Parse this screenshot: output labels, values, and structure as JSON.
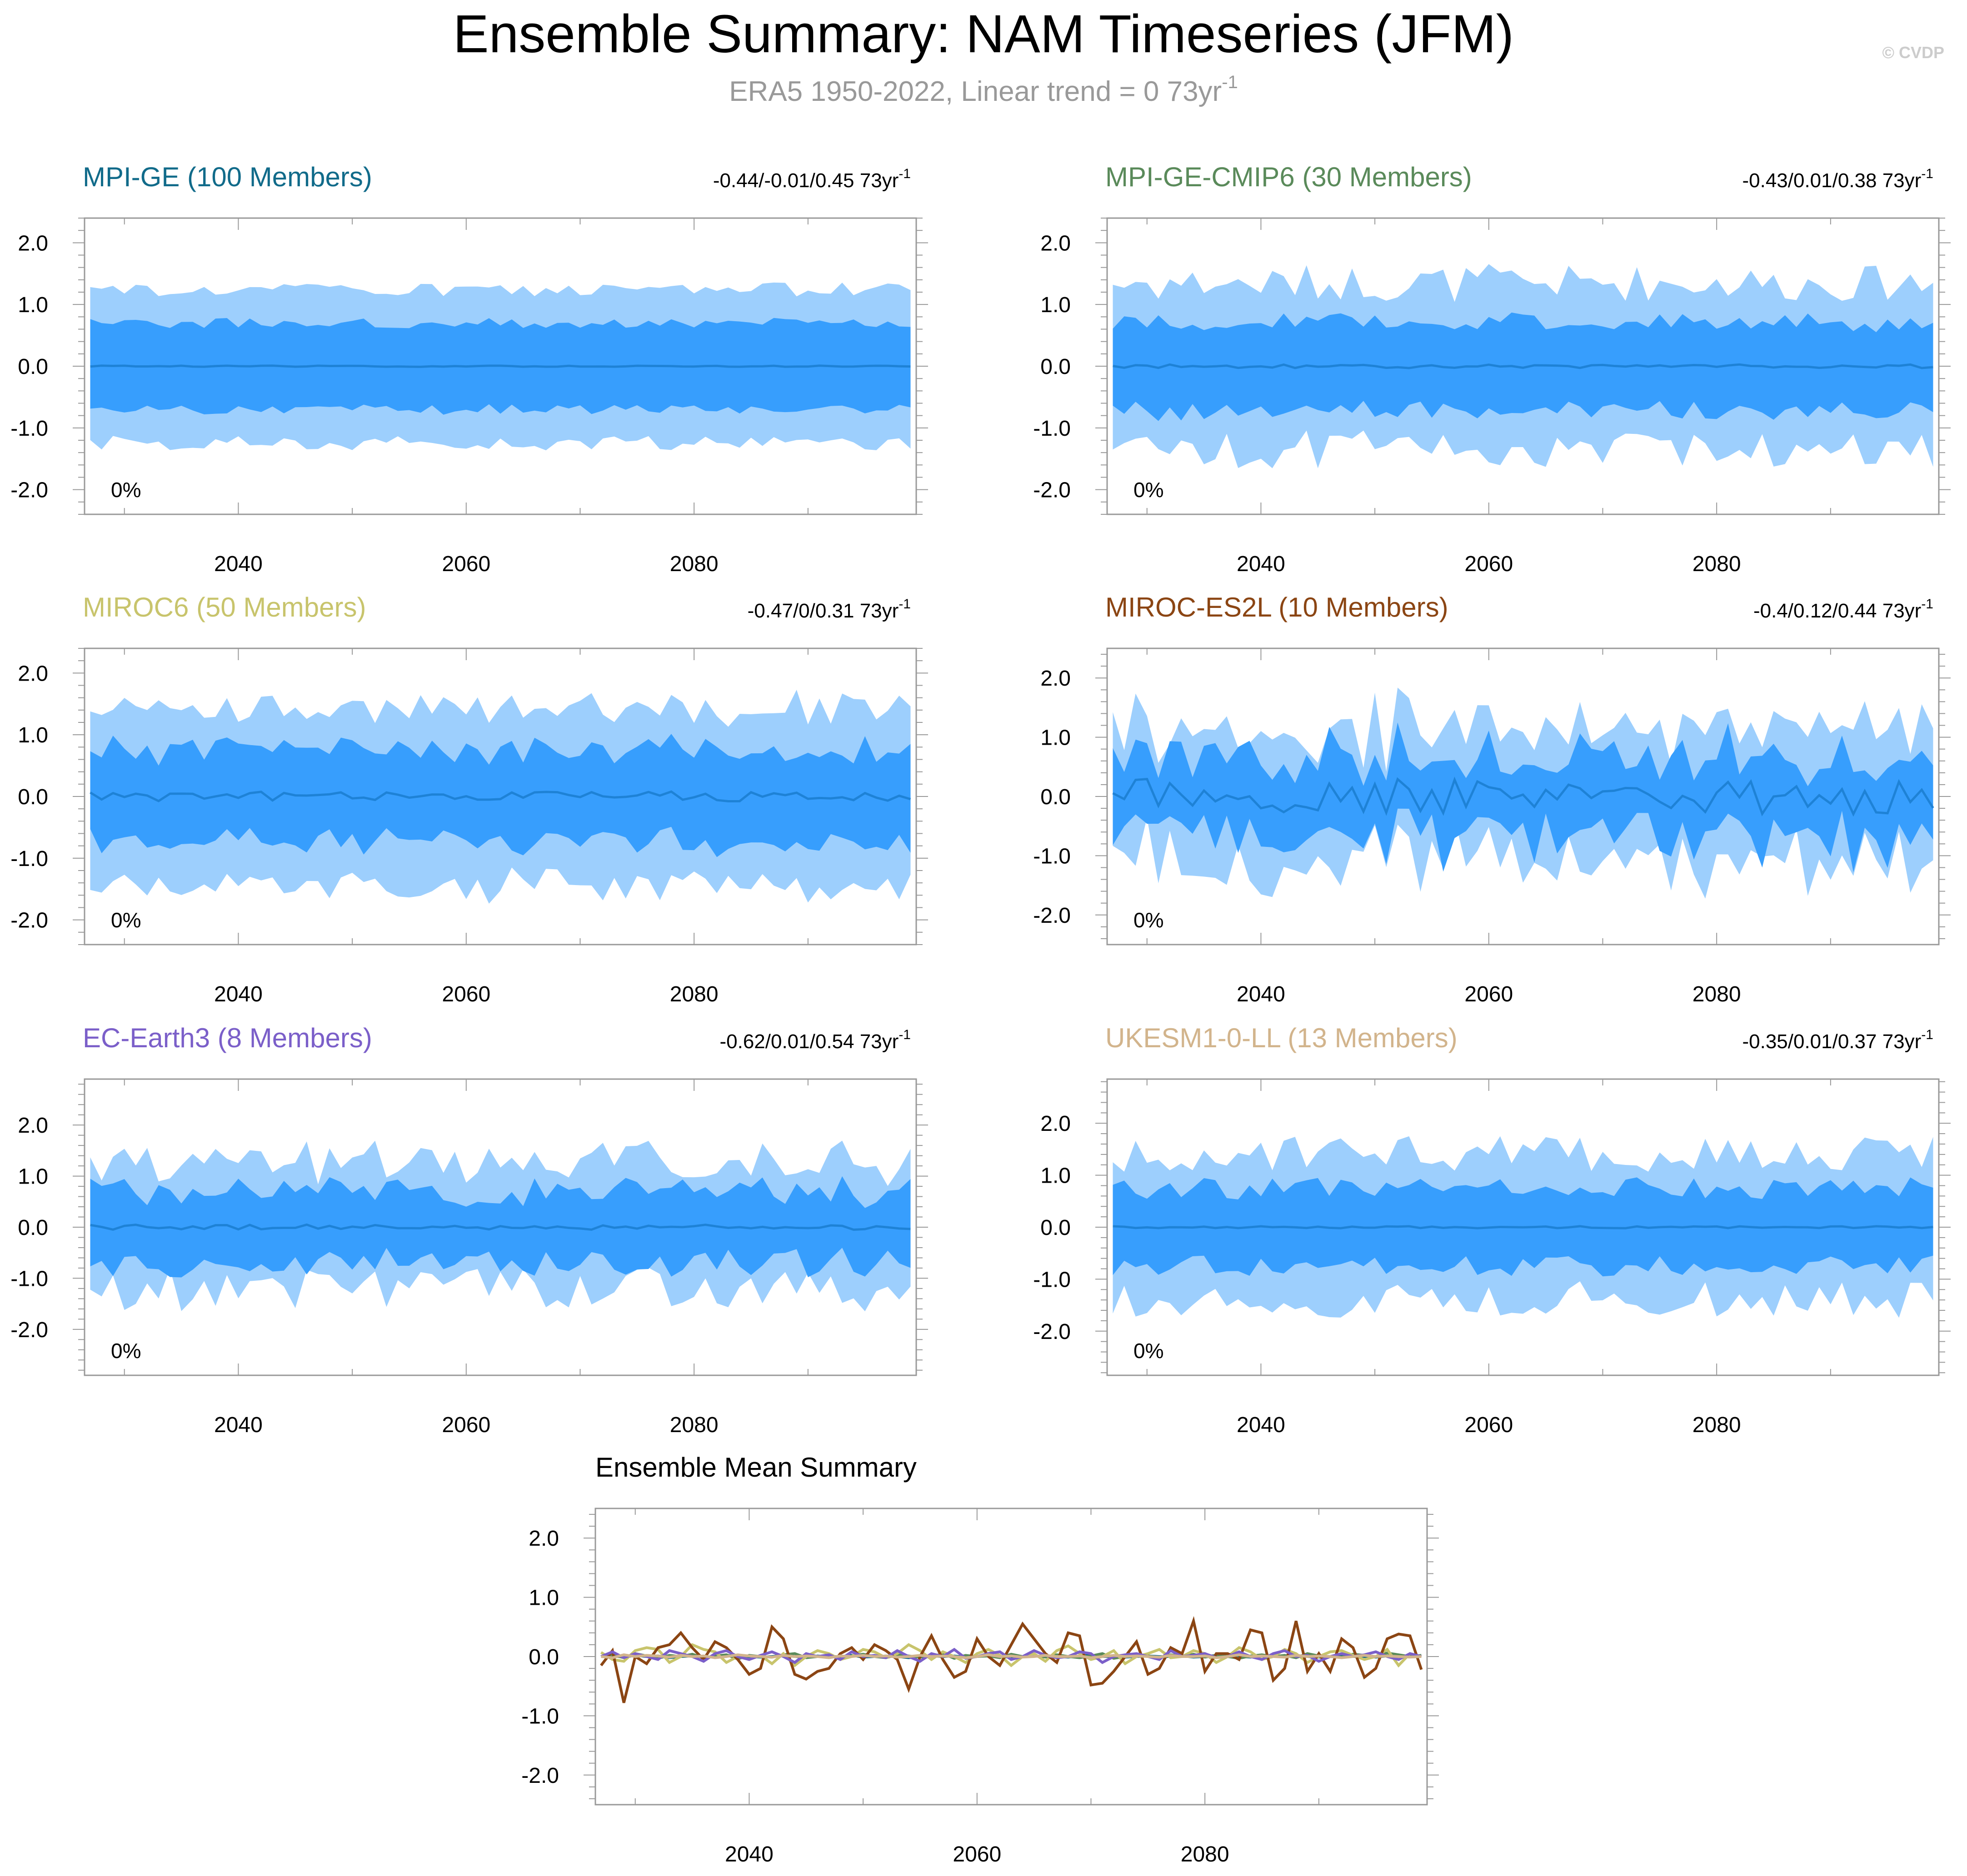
{
  "title": "Ensemble Summary: NAM Timeseries (JFM)",
  "subtitle": {
    "text": "ERA5 1950-2022, Linear trend = 0 73yr",
    "superscript": "-1"
  },
  "watermark": "© CVDP",
  "colors": {
    "outer_band": "#9dcffd",
    "inner_band": "#379efd",
    "mean_line": "#1e82d6",
    "axis": "#000000",
    "subtitle": "#999999",
    "watermark": "#cccccc"
  },
  "chart_data": [
    {
      "type": "area",
      "title": "MPI-GE (100 Members)",
      "title_color": "#116b8a",
      "trend_text": "-0.44/-0.01/0.45 73yr",
      "trend_sup": "-1",
      "percent_label": "0%",
      "xlim": [
        2026.5,
        2099.5
      ],
      "ylim": [
        -2.4,
        2.4
      ],
      "yticks": [
        2.0,
        1.0,
        0.0,
        -1.0,
        -2.0
      ],
      "ytick_labels": [
        "2.0",
        "1.0",
        "0.0",
        "-1.0",
        "-2.0"
      ],
      "xticks": [
        2040,
        2060,
        2080
      ],
      "xtick_labels": [
        "2040",
        "2060",
        "2080"
      ],
      "x_start": 2027,
      "x_end": 2099,
      "bands": {
        "outer_amp": 1.25,
        "inner_amp": 0.7,
        "outer_var": 0.12,
        "inner_var": 0.08,
        "mean_var": 0.01,
        "seed": 3
      }
    },
    {
      "type": "area",
      "title": "MPI-GE-CMIP6 (30 Members)",
      "title_color": "#5a8a5a",
      "trend_text": "-0.43/0.01/0.38 73yr",
      "trend_sup": "-1",
      "percent_label": "0%",
      "xlim": [
        2026.5,
        2099.5
      ],
      "ylim": [
        -2.4,
        2.4
      ],
      "yticks": [
        2.0,
        1.0,
        0.0,
        -1.0,
        -2.0
      ],
      "ytick_labels": [
        "2.0",
        "1.0",
        "0.0",
        "-1.0",
        "-2.0"
      ],
      "xticks": [
        2040,
        2060,
        2080
      ],
      "xtick_labels": [
        "2040",
        "2060",
        "2080"
      ],
      "x_start": 2027,
      "x_end": 2099,
      "bands": {
        "outer_amp": 1.35,
        "inner_amp": 0.72,
        "outer_var": 0.3,
        "inner_var": 0.15,
        "mean_var": 0.03,
        "seed": 7
      }
    },
    {
      "type": "area",
      "title": "MIROC6 (50 Members)",
      "title_color": "#c8c46c",
      "trend_text": "-0.47/0/0.31 73yr",
      "trend_sup": "-1",
      "percent_label": "0%",
      "xlim": [
        2026.5,
        2099.5
      ],
      "ylim": [
        -2.4,
        2.4
      ],
      "yticks": [
        2.0,
        1.0,
        0.0,
        -1.0,
        -2.0
      ],
      "ytick_labels": [
        "2.0",
        "1.0",
        "0.0",
        "-1.0",
        "-2.0"
      ],
      "xticks": [
        2040,
        2060,
        2080
      ],
      "xtick_labels": [
        "2040",
        "2060",
        "2080"
      ],
      "x_start": 2027,
      "x_end": 2099,
      "bands": {
        "outer_amp": 1.45,
        "inner_amp": 0.75,
        "outer_var": 0.25,
        "inner_var": 0.2,
        "mean_var": 0.08,
        "seed": 11
      }
    },
    {
      "type": "area",
      "title": "MIROC-ES2L (10 Members)",
      "title_color": "#8b4513",
      "trend_text": "-0.4/0.12/0.44 73yr",
      "trend_sup": "-1",
      "percent_label": "0%",
      "xlim": [
        2026.5,
        2099.5
      ],
      "ylim": [
        -2.5,
        2.5
      ],
      "yticks": [
        2.0,
        1.0,
        0.0,
        -1.0,
        -2.0
      ],
      "ytick_labels": [
        "2.0",
        "1.0",
        "0.0",
        "-1.0",
        "-2.0"
      ],
      "xticks": [
        2040,
        2060,
        2080
      ],
      "xtick_labels": [
        "2040",
        "2060",
        "2080"
      ],
      "x_start": 2027,
      "x_end": 2099,
      "bands": {
        "outer_amp": 1.1,
        "inner_amp": 0.65,
        "outer_var": 0.45,
        "inner_var": 0.35,
        "mean_var": 0.3,
        "seed": 19
      }
    },
    {
      "type": "area",
      "title": "EC-Earth3 (8 Members)",
      "title_color": "#7b5fc9",
      "trend_text": "-0.62/0.01/0.54 73yr",
      "trend_sup": "-1",
      "percent_label": "0%",
      "xlim": [
        2026.5,
        2099.5
      ],
      "ylim": [
        -2.9,
        2.9
      ],
      "yticks": [
        2.0,
        1.0,
        0.0,
        -1.0,
        -2.0
      ],
      "ytick_labels": [
        "2.0",
        "1.0",
        "0.0",
        "-1.0",
        "-2.0"
      ],
      "xticks": [
        2040,
        2060,
        2080
      ],
      "xtick_labels": [
        "2040",
        "2060",
        "2080"
      ],
      "x_start": 2027,
      "x_end": 2099,
      "bands": {
        "outer_amp": 1.25,
        "inner_amp": 0.7,
        "outer_var": 0.45,
        "inner_var": 0.3,
        "mean_var": 0.05,
        "seed": 23
      }
    },
    {
      "type": "area",
      "title": "UKESM1-0-LL (13 Members)",
      "title_color": "#d2b48c",
      "trend_text": "-0.35/0.01/0.37 73yr",
      "trend_sup": "-1",
      "percent_label": "0%",
      "xlim": [
        2026.5,
        2099.5
      ],
      "ylim": [
        -2.85,
        2.85
      ],
      "yticks": [
        2.0,
        1.0,
        0.0,
        -1.0,
        -2.0
      ],
      "ytick_labels": [
        "2.0",
        "1.0",
        "0.0",
        "-1.0",
        "-2.0"
      ],
      "xticks": [
        2040,
        2060,
        2080
      ],
      "xtick_labels": [
        "2040",
        "2060",
        "2080"
      ],
      "x_start": 2027,
      "x_end": 2099,
      "bands": {
        "outer_amp": 1.4,
        "inner_amp": 0.75,
        "outer_var": 0.35,
        "inner_var": 0.2,
        "mean_var": 0.02,
        "seed": 29
      }
    },
    {
      "type": "line",
      "title": "Ensemble Mean Summary",
      "title_color": "#000000",
      "xlim": [
        2026.5,
        2099.5
      ],
      "ylim": [
        -2.5,
        2.5
      ],
      "yticks": [
        2.0,
        1.0,
        0.0,
        -1.0,
        -2.0
      ],
      "ytick_labels": [
        "2.0",
        "1.0",
        "0.0",
        "-1.0",
        "-2.0"
      ],
      "xticks": [
        2040,
        2060,
        2080
      ],
      "xtick_labels": [
        "2040",
        "2060",
        "2080"
      ],
      "x_start": 2027,
      "series": [
        {
          "name": "MPI-GE",
          "color": "#116b8a",
          "values": [
            0.0,
            0.01,
            -0.01,
            0.02,
            0.0,
            0.01,
            -0.02,
            0.0,
            0.01,
            0.0,
            -0.01,
            0.02,
            0.01,
            0.0,
            -0.01,
            0.0,
            0.02,
            0.0,
            -0.01,
            0.01,
            0.0,
            0.0,
            0.02,
            -0.01,
            0.0,
            0.01,
            0.0,
            -0.02,
            0.0,
            0.01,
            0.0,
            0.01,
            -0.01,
            0.0,
            0.02,
            0.0,
            -0.01,
            0.0,
            0.01,
            0.0,
            0.0,
            -0.01,
            0.01,
            0.02,
            0.0,
            0.0,
            -0.01,
            0.0,
            0.01,
            0.0,
            0.0,
            0.01,
            -0.01,
            0.0,
            0.02,
            0.0,
            0.0,
            -0.01,
            0.01,
            0.0,
            0.0,
            0.02,
            0.0,
            -0.01,
            0.0,
            0.01,
            0.0,
            0.0,
            -0.01,
            0.01,
            0.0,
            0.0,
            0.0
          ]
        },
        {
          "name": "MPI-GE-CMIP6",
          "color": "#5a8a5a",
          "values": [
            0.0,
            0.03,
            -0.02,
            0.05,
            0.01,
            -0.03,
            0.02,
            0.0,
            0.04,
            -0.02,
            0.01,
            0.03,
            -0.04,
            0.02,
            0.0,
            -0.01,
            0.03,
            0.05,
            -0.02,
            0.0,
            0.02,
            -0.03,
            0.01,
            0.04,
            0.0,
            -0.02,
            0.03,
            0.01,
            -0.01,
            0.0,
            0.05,
            -0.03,
            0.02,
            0.0,
            0.01,
            -0.02,
            0.04,
            0.0,
            0.02,
            -0.01,
            0.03,
            0.0,
            -0.02,
            0.01,
            0.05,
            -0.03,
            0.0,
            0.02,
            0.01,
            -0.02,
            0.03,
            0.0,
            0.04,
            -0.01,
            0.02,
            0.0,
            -0.03,
            0.01,
            0.03,
            0.0,
            0.02,
            -0.02,
            0.05,
            0.01,
            0.0,
            -0.01,
            0.04,
            0.02,
            0.0,
            0.06,
            0.03,
            0.0,
            0.02
          ]
        },
        {
          "name": "MIROC6",
          "color": "#c8c46c",
          "values": [
            0.07,
            -0.05,
            -0.08,
            0.1,
            0.15,
            0.12,
            -0.1,
            0.0,
            0.2,
            0.12,
            0.08,
            -0.1,
            0.0,
            -0.05,
            0.02,
            -0.12,
            0.05,
            -0.15,
            0.0,
            0.1,
            0.05,
            -0.05,
            0.0,
            0.12,
            0.08,
            -0.02,
            0.05,
            0.2,
            0.1,
            -0.05,
            0.08,
            0.0,
            -0.1,
            0.05,
            0.12,
            0.02,
            -0.15,
            0.0,
            0.05,
            -0.08,
            0.1,
            0.18,
            0.05,
            -0.05,
            0.0,
            0.1,
            -0.12,
            0.0,
            0.05,
            0.12,
            -0.02,
            0.0,
            0.1,
            0.05,
            -0.1,
            0.0,
            0.15,
            0.08,
            -0.05,
            0.0,
            0.12,
            0.05,
            -0.1,
            0.0,
            0.08,
            0.1,
            0.02,
            -0.05,
            0.0,
            0.12,
            -0.15,
            0.05,
            0.0
          ]
        },
        {
          "name": "MIROC-ES2L",
          "color": "#8b4513",
          "values": [
            -0.15,
            0.1,
            -0.78,
            0.0,
            -0.12,
            0.15,
            0.2,
            0.4,
            0.15,
            -0.05,
            0.25,
            0.15,
            -0.05,
            -0.3,
            -0.2,
            0.5,
            0.3,
            -0.3,
            -0.38,
            -0.25,
            -0.2,
            0.05,
            0.15,
            -0.05,
            0.2,
            0.1,
            -0.05,
            -0.55,
            0.0,
            0.35,
            -0.05,
            -0.35,
            -0.25,
            0.3,
            0.0,
            -0.15,
            0.2,
            0.55,
            0.3,
            0.05,
            -0.1,
            0.4,
            0.35,
            -0.48,
            -0.45,
            -0.25,
            0.0,
            0.25,
            -0.3,
            -0.2,
            0.15,
            0.05,
            0.6,
            -0.25,
            0.05,
            0.05,
            -0.05,
            0.45,
            0.4,
            -0.4,
            -0.2,
            0.6,
            -0.25,
            0.05,
            -0.25,
            0.3,
            0.15,
            -0.35,
            -0.2,
            0.3,
            0.38,
            0.35,
            -0.22
          ]
        },
        {
          "name": "EC-Earth3",
          "color": "#7b5fc9",
          "values": [
            0.0,
            0.08,
            -0.02,
            0.05,
            0.0,
            -0.05,
            0.1,
            0.05,
            0.0,
            -0.08,
            0.05,
            0.1,
            0.0,
            -0.05,
            0.02,
            0.08,
            0.0,
            -0.1,
            0.05,
            0.0,
            0.03,
            -0.05,
            0.08,
            0.0,
            0.02,
            -0.02,
            0.1,
            0.0,
            -0.08,
            0.05,
            0.0,
            0.12,
            -0.03,
            0.0,
            0.05,
            0.08,
            -0.05,
            0.0,
            0.1,
            0.02,
            -0.02,
            0.0,
            0.08,
            0.05,
            -0.1,
            0.0,
            0.03,
            0.05,
            0.0,
            -0.05,
            0.1,
            0.0,
            0.02,
            0.05,
            -0.02,
            0.0,
            0.08,
            0.0,
            -0.05,
            0.05,
            0.1,
            0.0,
            0.02,
            -0.08,
            0.0,
            0.05,
            0.0,
            0.03,
            0.08,
            0.0,
            -0.05,
            0.05,
            0.0
          ]
        },
        {
          "name": "UKESM1-0-LL",
          "color": "#d2b48c",
          "values": [
            0.0,
            -0.02,
            0.03,
            0.0,
            0.02,
            0.01,
            -0.01,
            0.02,
            0.0,
            0.01,
            -0.02,
            0.0,
            0.03,
            0.01,
            0.0,
            -0.01,
            0.02,
            0.0,
            0.01,
            0.0,
            -0.02,
            0.01,
            0.0,
            0.02,
            0.0,
            0.01,
            -0.01,
            0.0,
            0.02,
            0.0,
            0.01,
            0.0,
            -0.02,
            0.0,
            0.03,
            0.0,
            0.01,
            -0.01,
            0.0,
            0.02,
            0.0,
            0.0,
            0.01,
            -0.02,
            0.0,
            0.02,
            0.0,
            0.01,
            0.0,
            -0.01,
            0.02,
            0.0,
            0.0,
            0.01,
            -0.02,
            0.0,
            0.03,
            0.0,
            0.01,
            0.0,
            -0.01,
            0.02,
            0.0,
            0.01,
            0.0,
            -0.02,
            0.0,
            0.02,
            0.0,
            0.01,
            0.0,
            -0.01,
            0.0
          ]
        }
      ]
    }
  ]
}
